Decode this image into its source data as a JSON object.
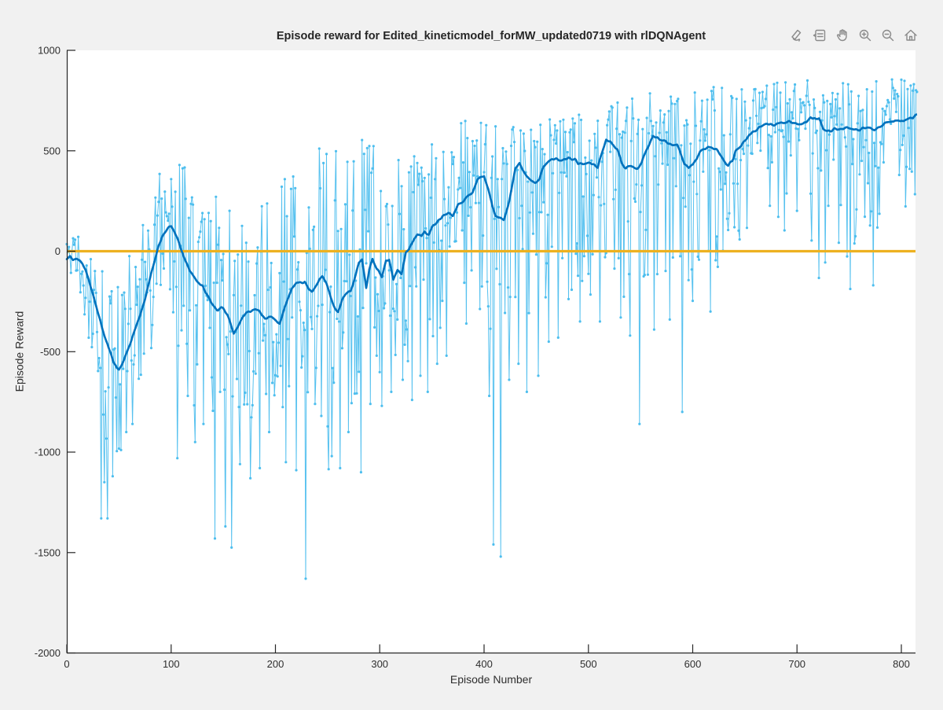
{
  "figure": {
    "title": "Episode reward for Edited_kineticmodel_forMW_updated0719 with rlDQNAgent"
  },
  "toolbar": {
    "icons": [
      {
        "name": "Brush/Select Data"
      },
      {
        "name": "Data Tips"
      },
      {
        "name": "Pan"
      },
      {
        "name": "Zoom In"
      },
      {
        "name": "Zoom Out"
      },
      {
        "name": "Restore View"
      }
    ]
  },
  "chart_data": {
    "type": "line",
    "title": "Episode reward for Edited_kineticmodel_forMW_updated0719 with rlDQNAgent",
    "xlabel": "Episode Number",
    "ylabel": "Episode Reward",
    "xlim": [
      0,
      815
    ],
    "ylim": [
      -2000,
      1000
    ],
    "xticks": [
      0,
      100,
      200,
      300,
      400,
      500,
      600,
      700,
      800
    ],
    "yticks": [
      -2000,
      -1500,
      -1000,
      -500,
      0,
      500,
      1000
    ],
    "grid": false,
    "legend": "none",
    "colors": {
      "episode_reward": "#4DBEEE",
      "average_reward": "#0072BD",
      "episode_q0": "#EDB120",
      "axis": "#262626",
      "plot_background": "#ffffff",
      "figure_background": "#f1f1f1"
    },
    "noise_seed": 11,
    "series": [
      {
        "name": "EpisodeReward",
        "style": "light-line-with-markers"
      },
      {
        "name": "AverageReward",
        "style": "thick-line"
      },
      {
        "name": "EpisodeQ0",
        "style": "horizontal-line",
        "value": 0
      }
    ],
    "average_reward_keypoints": [
      [
        0,
        -40
      ],
      [
        3,
        -28
      ],
      [
        6,
        -42
      ],
      [
        9,
        -38
      ],
      [
        12,
        -48
      ],
      [
        15,
        -58
      ],
      [
        18,
        -90
      ],
      [
        21,
        -140
      ],
      [
        24,
        -200
      ],
      [
        27,
        -255
      ],
      [
        30,
        -305
      ],
      [
        33,
        -365
      ],
      [
        36,
        -420
      ],
      [
        39,
        -465
      ],
      [
        42,
        -510
      ],
      [
        45,
        -550
      ],
      [
        48,
        -580
      ],
      [
        50,
        -588
      ],
      [
        52,
        -572
      ],
      [
        55,
        -535
      ],
      [
        58,
        -500
      ],
      [
        61,
        -455
      ],
      [
        64,
        -410
      ],
      [
        67,
        -365
      ],
      [
        70,
        -320
      ],
      [
        73,
        -270
      ],
      [
        76,
        -220
      ],
      [
        79,
        -155
      ],
      [
        82,
        -90
      ],
      [
        85,
        -30
      ],
      [
        88,
        30
      ],
      [
        91,
        70
      ],
      [
        94,
        95
      ],
      [
        97,
        112
      ],
      [
        100,
        120
      ],
      [
        103,
        100
      ],
      [
        106,
        60
      ],
      [
        109,
        20
      ],
      [
        112,
        -30
      ],
      [
        115,
        -65
      ],
      [
        118,
        -95
      ],
      [
        121,
        -120
      ],
      [
        124,
        -142
      ],
      [
        127,
        -158
      ],
      [
        130,
        -175
      ],
      [
        133,
        -205
      ],
      [
        136,
        -232
      ],
      [
        139,
        -258
      ],
      [
        142,
        -278
      ],
      [
        145,
        -295
      ],
      [
        148,
        -285
      ],
      [
        151,
        -295
      ],
      [
        154,
        -315
      ],
      [
        157,
        -355
      ],
      [
        160,
        -405
      ],
      [
        163,
        -385
      ],
      [
        166,
        -355
      ],
      [
        169,
        -325
      ],
      [
        172,
        -305
      ],
      [
        175,
        -297
      ],
      [
        178,
        -290
      ],
      [
        181,
        -288
      ],
      [
        184,
        -300
      ],
      [
        187,
        -315
      ],
      [
        190,
        -330
      ],
      [
        193,
        -328
      ],
      [
        196,
        -330
      ],
      [
        200,
        -345
      ],
      [
        204,
        -356
      ],
      [
        208,
        -300
      ],
      [
        212,
        -235
      ],
      [
        216,
        -185
      ],
      [
        220,
        -165
      ],
      [
        224,
        -150
      ],
      [
        228,
        -150
      ],
      [
        232,
        -190
      ],
      [
        235,
        -200
      ],
      [
        238,
        -175
      ],
      [
        242,
        -140
      ],
      [
        245,
        -128
      ],
      [
        249,
        -160
      ],
      [
        253,
        -230
      ],
      [
        257,
        -280
      ],
      [
        260,
        -298
      ],
      [
        264,
        -240
      ],
      [
        268,
        -212
      ],
      [
        272,
        -200
      ],
      [
        276,
        -133
      ],
      [
        280,
        -60
      ],
      [
        283,
        -43
      ],
      [
        287,
        -187
      ],
      [
        290,
        -90
      ],
      [
        293,
        -36
      ],
      [
        297,
        -89
      ],
      [
        302,
        -121
      ],
      [
        306,
        -46
      ],
      [
        309,
        -43
      ],
      [
        313,
        -148
      ],
      [
        317,
        -93
      ],
      [
        321,
        -113
      ],
      [
        325,
        -5
      ],
      [
        328,
        14
      ],
      [
        332,
        53
      ],
      [
        336,
        92
      ],
      [
        340,
        73
      ],
      [
        343,
        100
      ],
      [
        347,
        80
      ],
      [
        351,
        124
      ],
      [
        355,
        152
      ],
      [
        360,
        175
      ],
      [
        365,
        195
      ],
      [
        370,
        185
      ],
      [
        375,
        230
      ],
      [
        380,
        255
      ],
      [
        385,
        275
      ],
      [
        389,
        290
      ],
      [
        394,
        360
      ],
      [
        400,
        376
      ],
      [
        404,
        309
      ],
      [
        408,
        223
      ],
      [
        411,
        180
      ],
      [
        415,
        165
      ],
      [
        419,
        153
      ],
      [
        423,
        231
      ],
      [
        426,
        309
      ],
      [
        430,
        415
      ],
      [
        434,
        434
      ],
      [
        438,
        399
      ],
      [
        441,
        376
      ],
      [
        445,
        356
      ],
      [
        449,
        350
      ],
      [
        453,
        360
      ],
      [
        457,
        419
      ],
      [
        461,
        440
      ],
      [
        464,
        458
      ],
      [
        470,
        460
      ],
      [
        476,
        455
      ],
      [
        481,
        460
      ],
      [
        487,
        458
      ],
      [
        490,
        438
      ],
      [
        494,
        434
      ],
      [
        498,
        436
      ],
      [
        502,
        438
      ],
      [
        506,
        430
      ],
      [
        509,
        420
      ],
      [
        513,
        490
      ],
      [
        517,
        556
      ],
      [
        521,
        548
      ],
      [
        524,
        532
      ],
      [
        528,
        505
      ],
      [
        532,
        446
      ],
      [
        536,
        415
      ],
      [
        540,
        419
      ],
      [
        543,
        423
      ],
      [
        547,
        415
      ],
      [
        551,
        440
      ],
      [
        555,
        497
      ],
      [
        559,
        540
      ],
      [
        562,
        572
      ],
      [
        566,
        565
      ],
      [
        570,
        556
      ],
      [
        574,
        545
      ],
      [
        577,
        537
      ],
      [
        581,
        535
      ],
      [
        585,
        532
      ],
      [
        589,
        480
      ],
      [
        592,
        438
      ],
      [
        596,
        419
      ],
      [
        600,
        430
      ],
      [
        604,
        460
      ],
      [
        607,
        493
      ],
      [
        611,
        510
      ],
      [
        615,
        520
      ],
      [
        619,
        510
      ],
      [
        623,
        505
      ],
      [
        627,
        480
      ],
      [
        630,
        454
      ],
      [
        634,
        427
      ],
      [
        638,
        454
      ],
      [
        641,
        497
      ],
      [
        645,
        520
      ],
      [
        649,
        544
      ],
      [
        653,
        570
      ],
      [
        657,
        591
      ],
      [
        661,
        605
      ],
      [
        664,
        615
      ],
      [
        668,
        625
      ],
      [
        672,
        631
      ],
      [
        676,
        632
      ],
      [
        679,
        634
      ],
      [
        684,
        638
      ],
      [
        691,
        642
      ],
      [
        695,
        636
      ],
      [
        698,
        631
      ],
      [
        702,
        633
      ],
      [
        706,
        634
      ],
      [
        710,
        650
      ],
      [
        713,
        662
      ],
      [
        717,
        660
      ],
      [
        721,
        658
      ],
      [
        725,
        615
      ],
      [
        729,
        600
      ],
      [
        732,
        595
      ],
      [
        736,
        607
      ],
      [
        740,
        610
      ],
      [
        743,
        613
      ],
      [
        747,
        610
      ],
      [
        751,
        607
      ],
      [
        755,
        605
      ],
      [
        758,
        603
      ],
      [
        762,
        610
      ],
      [
        766,
        615
      ],
      [
        770,
        610
      ],
      [
        774,
        607
      ],
      [
        778,
        618
      ],
      [
        781,
        630
      ],
      [
        785,
        640
      ],
      [
        789,
        650
      ],
      [
        793,
        652
      ],
      [
        796,
        654
      ],
      [
        800,
        650
      ],
      [
        804,
        650
      ],
      [
        808,
        655
      ],
      [
        811,
        662
      ],
      [
        815,
        689
      ]
    ],
    "episode_reward_envelope": [
      [
        0,
        -130,
        60
      ],
      [
        10,
        -150,
        80
      ],
      [
        18,
        -430,
        40
      ],
      [
        25,
        -600,
        -40
      ],
      [
        32,
        -750,
        -80
      ],
      [
        40,
        -1050,
        -150
      ],
      [
        50,
        -1050,
        -120
      ],
      [
        58,
        -900,
        -20
      ],
      [
        66,
        -800,
        60
      ],
      [
        74,
        -600,
        200
      ],
      [
        82,
        -480,
        380
      ],
      [
        90,
        -380,
        470
      ],
      [
        98,
        -470,
        460
      ],
      [
        106,
        -600,
        440
      ],
      [
        114,
        -700,
        420
      ],
      [
        122,
        -800,
        310
      ],
      [
        130,
        -850,
        230
      ],
      [
        138,
        -900,
        250
      ],
      [
        146,
        -950,
        300
      ],
      [
        154,
        -900,
        220
      ],
      [
        162,
        -850,
        210
      ],
      [
        170,
        -820,
        260
      ],
      [
        178,
        -850,
        300
      ],
      [
        186,
        -820,
        260
      ],
      [
        194,
        -780,
        300
      ],
      [
        202,
        -760,
        360
      ],
      [
        210,
        -800,
        430
      ],
      [
        218,
        -720,
        420
      ],
      [
        226,
        -800,
        470
      ],
      [
        234,
        -800,
        560
      ],
      [
        242,
        -820,
        520
      ],
      [
        250,
        -900,
        480
      ],
      [
        258,
        -860,
        520
      ],
      [
        266,
        -820,
        560
      ],
      [
        274,
        -800,
        590
      ],
      [
        282,
        -760,
        600
      ],
      [
        290,
        -660,
        560
      ],
      [
        298,
        -620,
        520
      ],
      [
        306,
        -560,
        500
      ],
      [
        314,
        -540,
        500
      ],
      [
        322,
        -500,
        530
      ],
      [
        330,
        -600,
        540
      ],
      [
        338,
        -560,
        560
      ],
      [
        346,
        -480,
        580
      ],
      [
        354,
        -440,
        580
      ],
      [
        362,
        -400,
        600
      ],
      [
        370,
        -310,
        640
      ],
      [
        378,
        -260,
        650
      ],
      [
        386,
        -280,
        650
      ],
      [
        394,
        -300,
        660
      ],
      [
        402,
        -380,
        650
      ],
      [
        410,
        -480,
        640
      ],
      [
        418,
        -420,
        650
      ],
      [
        426,
        -320,
        660
      ],
      [
        434,
        -330,
        670
      ],
      [
        442,
        -350,
        680
      ],
      [
        450,
        -300,
        680
      ],
      [
        460,
        -260,
        690
      ],
      [
        470,
        -300,
        700
      ],
      [
        480,
        -260,
        720
      ],
      [
        490,
        -210,
        730
      ],
      [
        500,
        -250,
        760
      ],
      [
        510,
        -210,
        780
      ],
      [
        520,
        -160,
        790
      ],
      [
        530,
        -210,
        780
      ],
      [
        540,
        -260,
        800
      ],
      [
        550,
        -300,
        790
      ],
      [
        560,
        -210,
        820
      ],
      [
        570,
        -160,
        810
      ],
      [
        580,
        -160,
        820
      ],
      [
        590,
        -210,
        800
      ],
      [
        600,
        -110,
        830
      ],
      [
        615,
        -90,
        820
      ],
      [
        630,
        -60,
        820
      ],
      [
        645,
        -40,
        830
      ],
      [
        660,
        0,
        840
      ],
      [
        675,
        60,
        840
      ],
      [
        690,
        90,
        850
      ],
      [
        705,
        120,
        850
      ],
      [
        720,
        -20,
        850
      ],
      [
        735,
        80,
        840
      ],
      [
        750,
        -60,
        850
      ],
      [
        765,
        60,
        850
      ],
      [
        780,
        120,
        860
      ],
      [
        800,
        170,
        860
      ],
      [
        815,
        260,
        870
      ]
    ],
    "deep_spikes": [
      [
        33,
        -1330
      ],
      [
        36,
        -1150
      ],
      [
        39,
        -1330
      ],
      [
        44,
        -1120
      ],
      [
        48,
        -995
      ],
      [
        52,
        -990
      ],
      [
        57,
        -900
      ],
      [
        63,
        -860
      ],
      [
        106,
        -1030
      ],
      [
        116,
        -720
      ],
      [
        123,
        -950
      ],
      [
        131,
        -860
      ],
      [
        142,
        -1430
      ],
      [
        147,
        -700
      ],
      [
        152,
        -1370
      ],
      [
        158,
        -1475
      ],
      [
        166,
        -1060
      ],
      [
        176,
        -1130
      ],
      [
        185,
        -1080
      ],
      [
        194,
        -900
      ],
      [
        210,
        -1050
      ],
      [
        220,
        -1090
      ],
      [
        229,
        -1630
      ],
      [
        238,
        -760
      ],
      [
        244,
        -820
      ],
      [
        251,
        -1085
      ],
      [
        254,
        -1020
      ],
      [
        262,
        -1080
      ],
      [
        270,
        -900
      ],
      [
        282,
        -1100
      ],
      [
        291,
        -760
      ],
      [
        302,
        -770
      ],
      [
        311,
        -700
      ],
      [
        322,
        -640
      ],
      [
        331,
        -740
      ],
      [
        339,
        -620
      ],
      [
        346,
        -700
      ],
      [
        355,
        -560
      ],
      [
        364,
        -520
      ],
      [
        383,
        -360
      ],
      [
        405,
        -720
      ],
      [
        409,
        -1460
      ],
      [
        416,
        -1520
      ],
      [
        424,
        -640
      ],
      [
        433,
        -560
      ],
      [
        441,
        -700
      ],
      [
        452,
        -620
      ],
      [
        462,
        -450
      ],
      [
        471,
        -430
      ],
      [
        492,
        -350
      ],
      [
        511,
        -350
      ],
      [
        531,
        -330
      ],
      [
        540,
        -420
      ],
      [
        549,
        -860
      ],
      [
        563,
        -390
      ],
      [
        578,
        -340
      ],
      [
        590,
        -800
      ],
      [
        600,
        -247
      ],
      [
        617,
        -300
      ],
      [
        624,
        -78
      ],
      [
        721,
        -133
      ],
      [
        727,
        -56
      ],
      [
        751,
        -188
      ],
      [
        773,
        -170
      ]
    ]
  }
}
